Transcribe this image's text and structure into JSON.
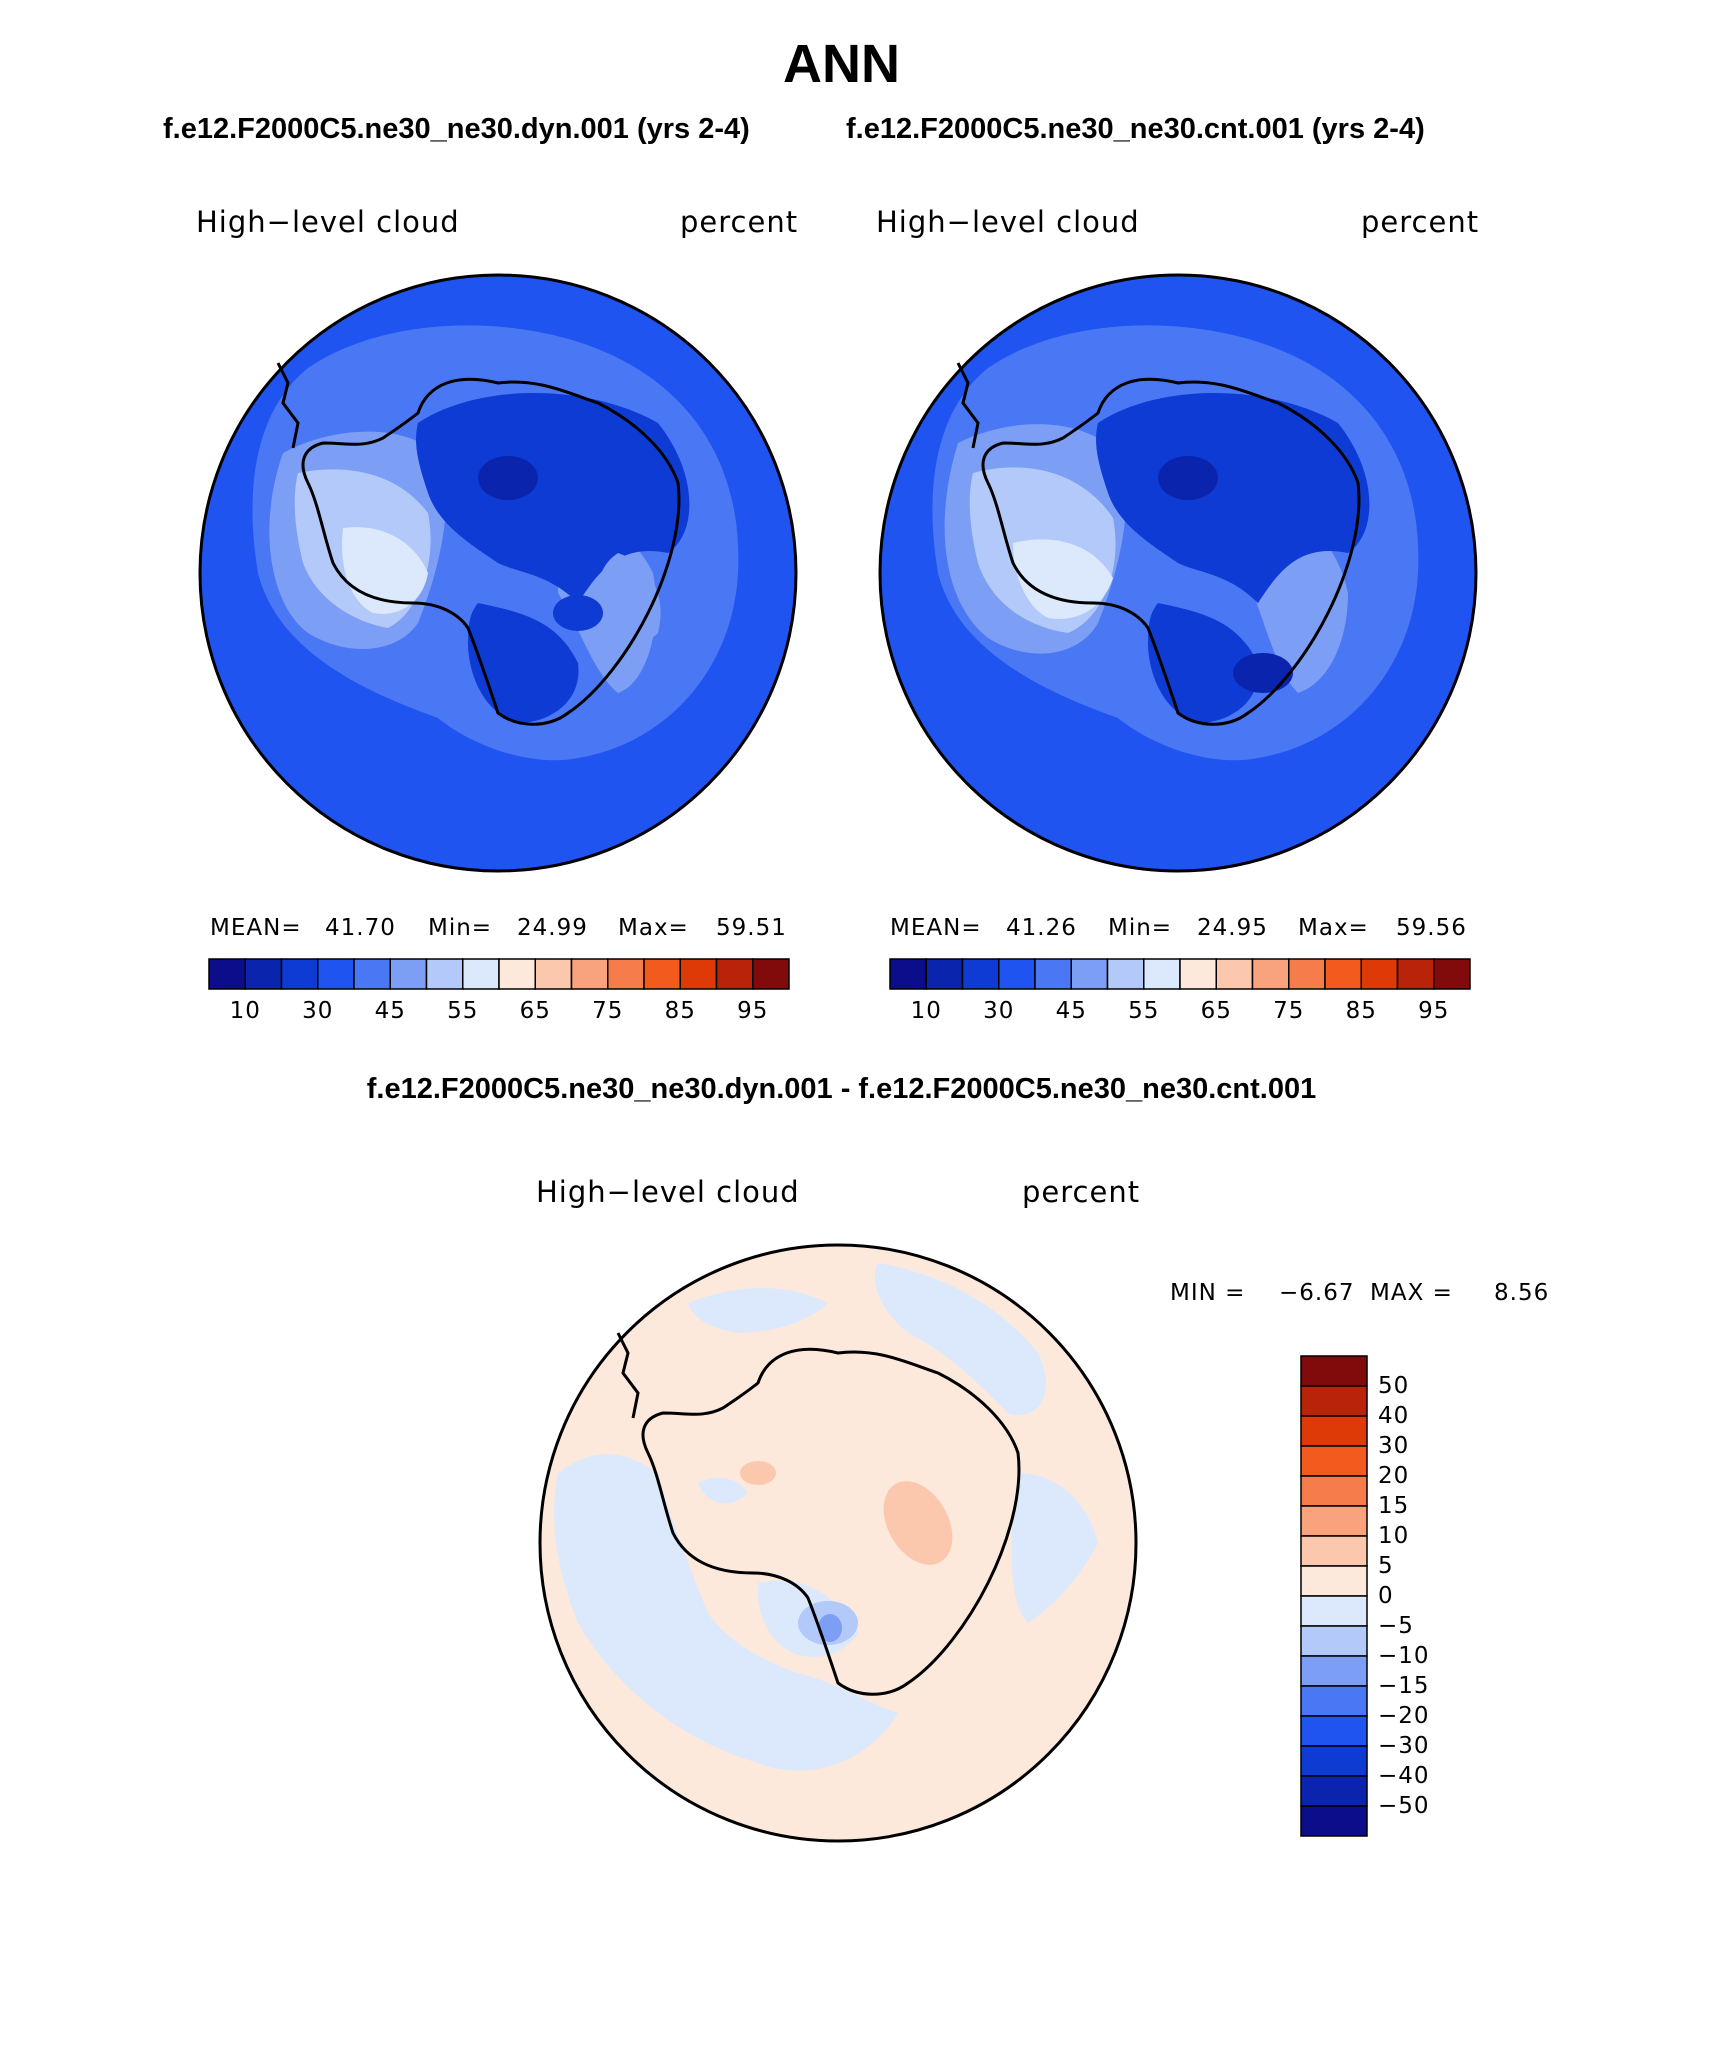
{
  "page": {
    "title": "ANN",
    "subtitle_left": "f.e12.F2000C5.ne30_ne30.dyn.001 (yrs 2-4)",
    "subtitle_right": "f.e12.F2000C5.ne30_ne30.cnt.001 (yrs 2-4)",
    "diff_title": "f.e12.F2000C5.ne30_ne30.dyn.001 - f.e12.F2000C5.ne30_ne30.cnt.001"
  },
  "panels": {
    "left": {
      "variable": "High−level cloud",
      "units": "percent",
      "mean_label": "MEAN=",
      "mean_value": "41.70",
      "min_label": "Min=",
      "min_value": "24.99",
      "max_label": "Max=",
      "max_value": "59.51"
    },
    "right": {
      "variable": "High−level cloud",
      "units": "percent",
      "mean_label": "MEAN=",
      "mean_value": "41.26",
      "min_label": "Min=",
      "min_value": "24.95",
      "max_label": "Max=",
      "max_value": "59.56"
    },
    "diff": {
      "variable": "High−level cloud",
      "units": "percent",
      "min_label": "MIN =",
      "min_value": "−6.67",
      "max_label": "MAX =",
      "max_value": "8.56"
    }
  },
  "colorbar_abs": {
    "tick_labels": [
      "10",
      "30",
      "45",
      "55",
      "65",
      "75",
      "85",
      "95"
    ],
    "colors": [
      "#0b0d8a",
      "#0a24ad",
      "#0e3bd3",
      "#1f54f0",
      "#4a77f3",
      "#7c9ef5",
      "#b2c9f9",
      "#dce9fc",
      "#fce9dc",
      "#fbc8ad",
      "#f8a27e",
      "#f67c4c",
      "#f25a1e",
      "#de3a08",
      "#b8230a",
      "#810b0b"
    ]
  },
  "colorbar_diff": {
    "tick_labels": [
      "50",
      "40",
      "30",
      "20",
      "15",
      "10",
      "5",
      "0",
      "−5",
      "−10",
      "−15",
      "−20",
      "−30",
      "−40",
      "−50"
    ],
    "colors_top_to_bottom": [
      "#810b0b",
      "#b8230a",
      "#de3a08",
      "#f25a1e",
      "#f67c4c",
      "#f8a27e",
      "#fbc8ad",
      "#fce9dc",
      "#dce9fc",
      "#b2c9f9",
      "#7c9ef5",
      "#4a77f3",
      "#1f54f0",
      "#0e3bd3",
      "#0a24ad",
      "#0b0d8a"
    ]
  },
  "map_colors": {
    "c35": "#1f54f0",
    "c40": "#4a77f3",
    "c45": "#7c9ef5",
    "c50": "#b2c9f9",
    "c55": "#dce9fc",
    "c25": "#0e3bd3",
    "diff_pos": "#fce9dc",
    "diff_neg": "#dce9fc",
    "diff_pos5": "#fbc8ad",
    "diff_neg5": "#b2c9f9",
    "diff_neg10": "#7c9ef5"
  }
}
